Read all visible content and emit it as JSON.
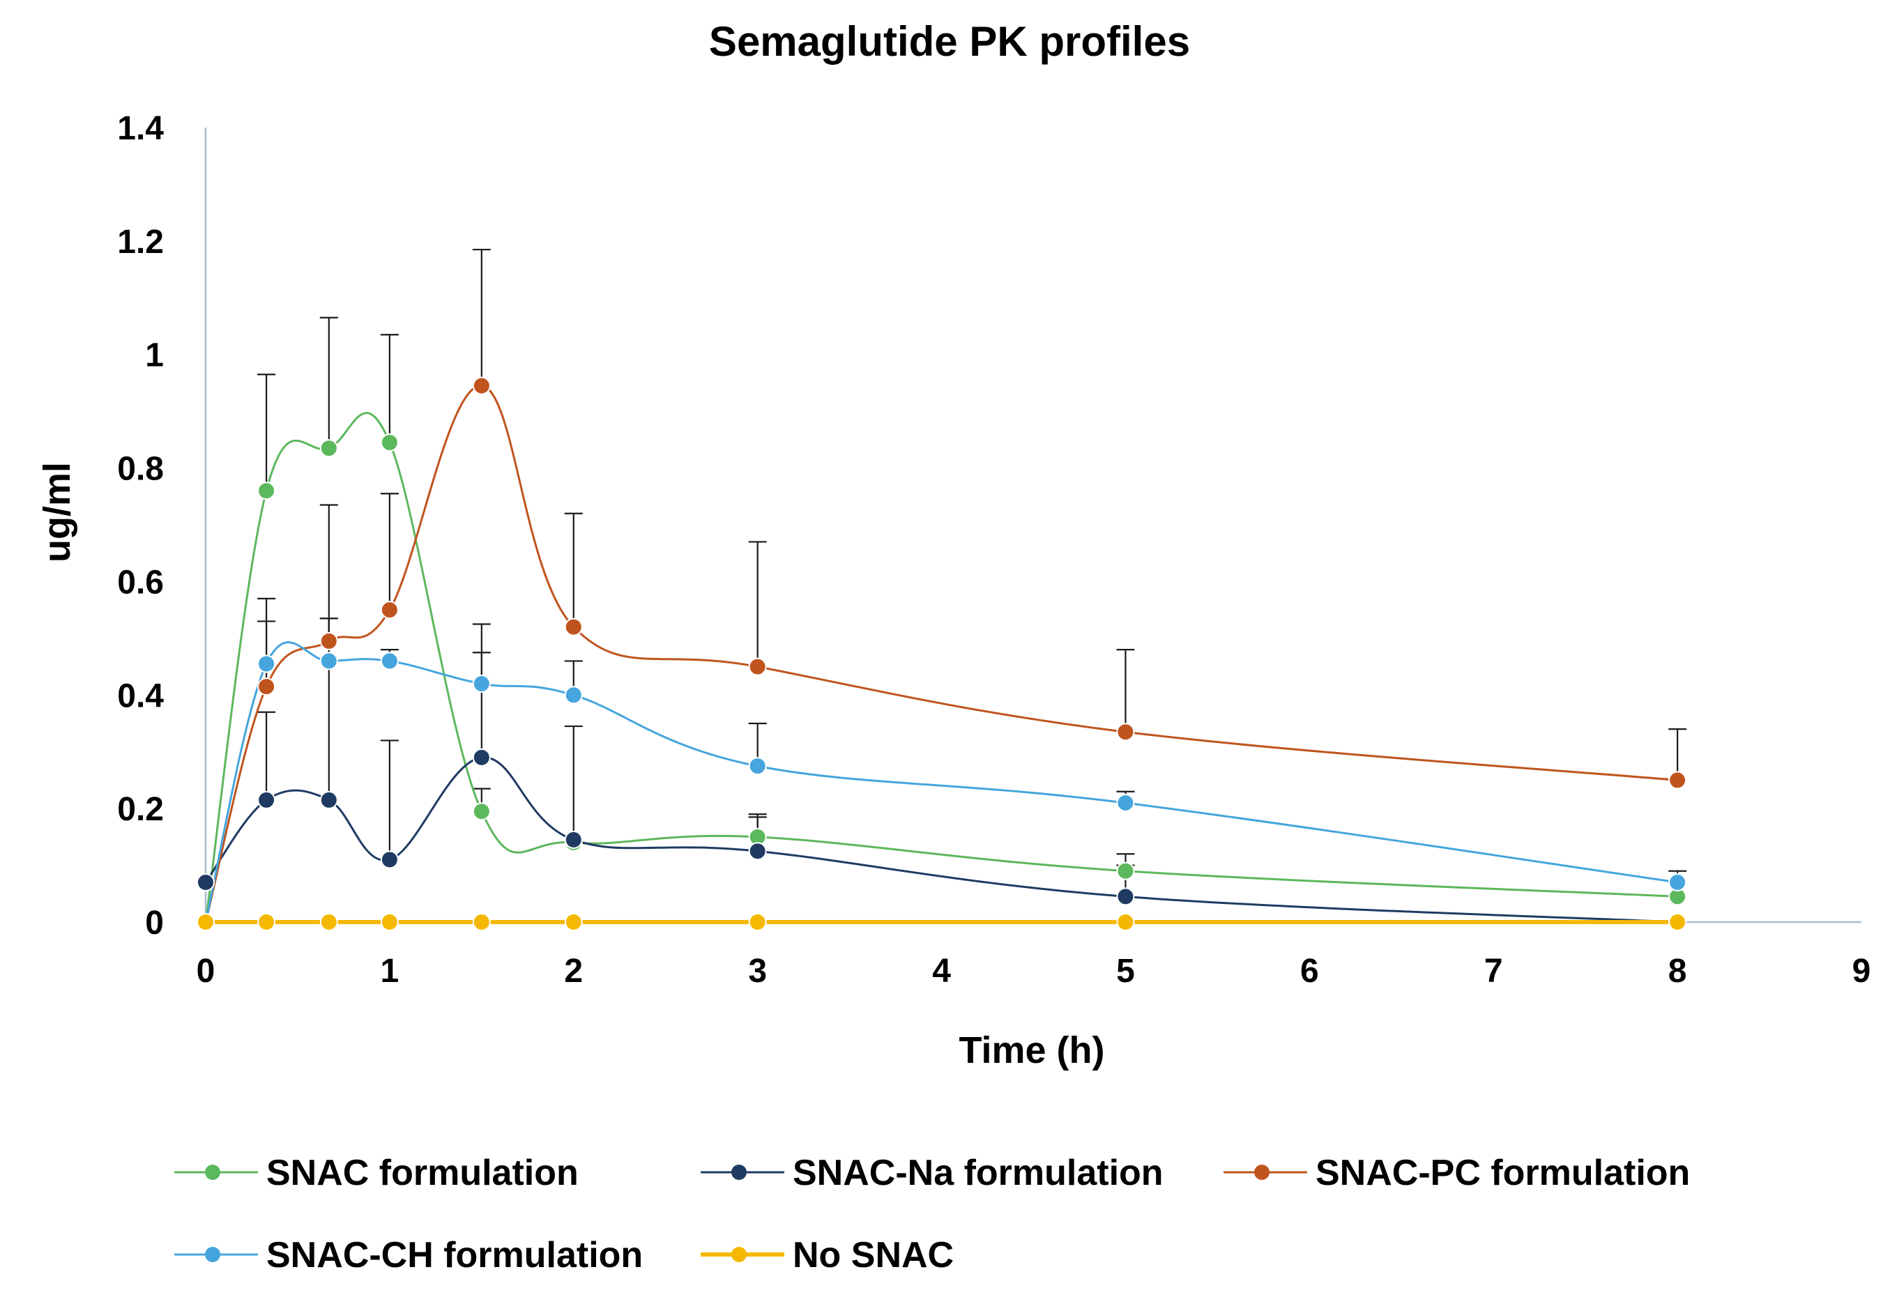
{
  "chart_data": {
    "type": "line",
    "title": "Semaglutide PK profiles",
    "xlabel": "Time (h)",
    "ylabel": "ug/ml",
    "xlim": [
      0,
      9
    ],
    "ylim": [
      0,
      1.4
    ],
    "xticks": [
      0,
      1,
      2,
      3,
      4,
      5,
      6,
      7,
      8,
      9
    ],
    "yticks": [
      0,
      0.2,
      0.4,
      0.6,
      0.8,
      1,
      1.2,
      1.4
    ],
    "ytick_labels": [
      "0",
      "0.2",
      "0.4",
      "0.6",
      "0.8",
      "1",
      "1.2",
      "1.4"
    ],
    "grid": false,
    "legend_position": "bottom",
    "series": [
      {
        "name": "SNAC formulation",
        "color": "#5cb85c",
        "x": [
          0,
          0.33,
          0.67,
          1,
          1.5,
          2,
          3,
          5,
          8
        ],
        "y": [
          0,
          0.76,
          0.835,
          0.845,
          0.195,
          0.14,
          0.15,
          0.09,
          0.045
        ],
        "err": [
          0,
          0.205,
          0.23,
          0.19,
          0.04,
          0,
          0.04,
          0.03,
          0
        ]
      },
      {
        "name": "SNAC-Na formulation",
        "color": "#1f3b63",
        "x": [
          0,
          0.33,
          0.67,
          1,
          1.5,
          2,
          3,
          5,
          8
        ],
        "y": [
          0.07,
          0.215,
          0.215,
          0.11,
          0.29,
          0.145,
          0.125,
          0.045,
          0
        ],
        "err": [
          0,
          0.155,
          0.32,
          0.21,
          0.185,
          0.2,
          0.06,
          0.055,
          0
        ]
      },
      {
        "name": "SNAC-PC formulation",
        "color": "#c0541e",
        "x": [
          0,
          0.33,
          0.67,
          1,
          1.5,
          2,
          3,
          5,
          8
        ],
        "y": [
          0,
          0.415,
          0.495,
          0.55,
          0.945,
          0.52,
          0.45,
          0.335,
          0.25
        ],
        "err": [
          0,
          0.155,
          0.24,
          0.205,
          0.24,
          0.2,
          0.22,
          0.145,
          0.09
        ]
      },
      {
        "name": "SNAC-CH formulation",
        "color": "#45a5dc",
        "x": [
          0,
          0.33,
          0.67,
          1,
          1.5,
          2,
          3,
          5,
          8
        ],
        "y": [
          0,
          0.455,
          0.46,
          0.46,
          0.42,
          0.4,
          0.275,
          0.21,
          0.07
        ],
        "err": [
          0,
          0.075,
          0.075,
          0.02,
          0.105,
          0.06,
          0.075,
          0.02,
          0.02
        ]
      },
      {
        "name": "No SNAC",
        "color": "#f5b800",
        "x": [
          0,
          0.33,
          0.67,
          1,
          1.5,
          2,
          3,
          5,
          8
        ],
        "y": [
          0,
          0,
          0,
          0,
          0,
          0,
          0,
          0,
          0
        ],
        "err": [
          0,
          0,
          0,
          0,
          0,
          0,
          0,
          0,
          0
        ]
      }
    ]
  }
}
